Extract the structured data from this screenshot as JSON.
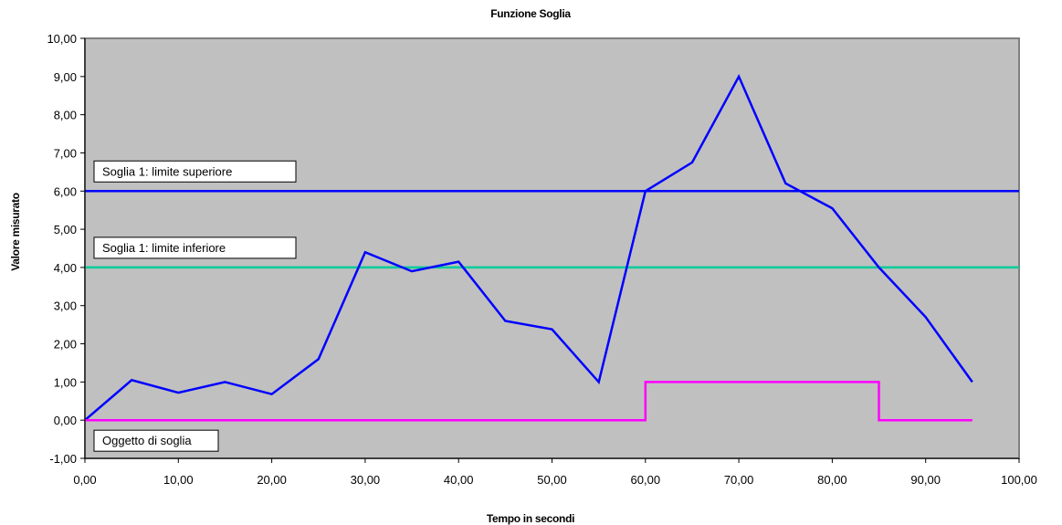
{
  "chart_data": {
    "type": "line",
    "title": "Funzione Soglia",
    "xlabel": "Tempo in secondi",
    "ylabel": "Valore misurato",
    "xlim": [
      0,
      100
    ],
    "ylim": [
      -1,
      10
    ],
    "x_ticks": [
      "0,00",
      "10,00",
      "20,00",
      "30,00",
      "40,00",
      "50,00",
      "60,00",
      "70,00",
      "80,00",
      "90,00",
      "100,00"
    ],
    "y_ticks": [
      "-1,00",
      "0,00",
      "1,00",
      "2,00",
      "3,00",
      "4,00",
      "5,00",
      "6,00",
      "7,00",
      "8,00",
      "9,00",
      "10,00"
    ],
    "grid": false,
    "plot_background": "#c0c0c0",
    "series": [
      {
        "color": "#0000ff",
        "x": [
          0,
          5,
          10,
          15,
          20,
          25,
          30,
          35,
          40,
          45,
          50,
          55,
          60,
          65,
          70,
          75,
          80,
          85,
          90,
          95
        ],
        "y": [
          0,
          1.05,
          0.72,
          1.0,
          0.68,
          1.6,
          4.4,
          3.9,
          4.15,
          2.6,
          2.38,
          1.0,
          6.0,
          6.75,
          9.0,
          6.2,
          5.55,
          4.0,
          2.7,
          1.0
        ]
      },
      {
        "color": "#ff00ff",
        "step": true,
        "x": [
          0,
          60,
          60,
          85,
          85,
          95
        ],
        "y": [
          0,
          0,
          1,
          1,
          0,
          0
        ]
      }
    ],
    "reference_lines": [
      {
        "y": 6.0,
        "color": "#0000ff"
      },
      {
        "y": 4.0,
        "color": "#00cc99"
      }
    ],
    "annotations": [
      {
        "text": "Soglia 1: limite superiore",
        "at_y": 6.0
      },
      {
        "text": "Soglia 1: limite inferiore",
        "at_y": 4.0
      },
      {
        "text": "Oggetto di soglia",
        "at_y": 0.0
      }
    ]
  }
}
